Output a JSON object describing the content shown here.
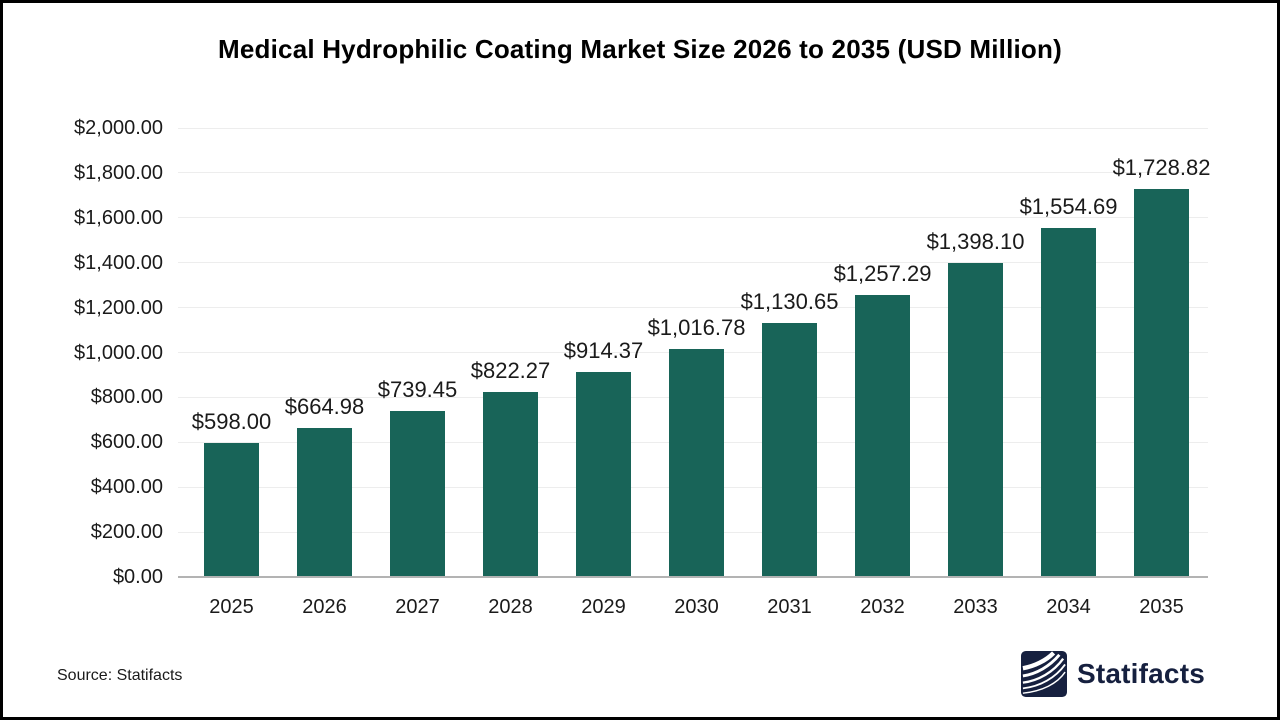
{
  "chart_data": {
    "type": "bar",
    "title": "Medical Hydrophilic Coating Market Size 2026 to 2035 (USD Million)",
    "categories": [
      "2025",
      "2026",
      "2027",
      "2028",
      "2029",
      "2030",
      "2031",
      "2032",
      "2033",
      "2034",
      "2035"
    ],
    "values": [
      598.0,
      664.98,
      739.45,
      822.27,
      914.37,
      1016.78,
      1130.65,
      1257.29,
      1398.1,
      1554.69,
      1728.82
    ],
    "value_labels": [
      "$598.00",
      "$664.98",
      "$739.45",
      "$822.27",
      "$914.37",
      "$1,016.78",
      "$1,130.65",
      "$1,257.29",
      "$1,398.10",
      "$1,554.69",
      "$1,728.82"
    ],
    "xlabel": "",
    "ylabel": "",
    "ylim": [
      0,
      2000
    ],
    "ytick_values": [
      0,
      200,
      400,
      600,
      800,
      1000,
      1200,
      1400,
      1600,
      1800,
      2000
    ],
    "ytick_labels": [
      "$0.00",
      "$200.00",
      "$400.00",
      "$600.00",
      "$800.00",
      "$1,000.00",
      "$1,200.00",
      "$1,400.00",
      "$1,600.00",
      "$1,800.00",
      "$2,000.00"
    ],
    "grid": true,
    "legend": "none",
    "bar_color": "#186458",
    "gridline_color": "#ededed",
    "baseline_color": "#b3b3b3"
  },
  "footer": {
    "source": "Source: Statifacts",
    "logo_text": "Statifacts",
    "logo_color": "#16203f"
  }
}
